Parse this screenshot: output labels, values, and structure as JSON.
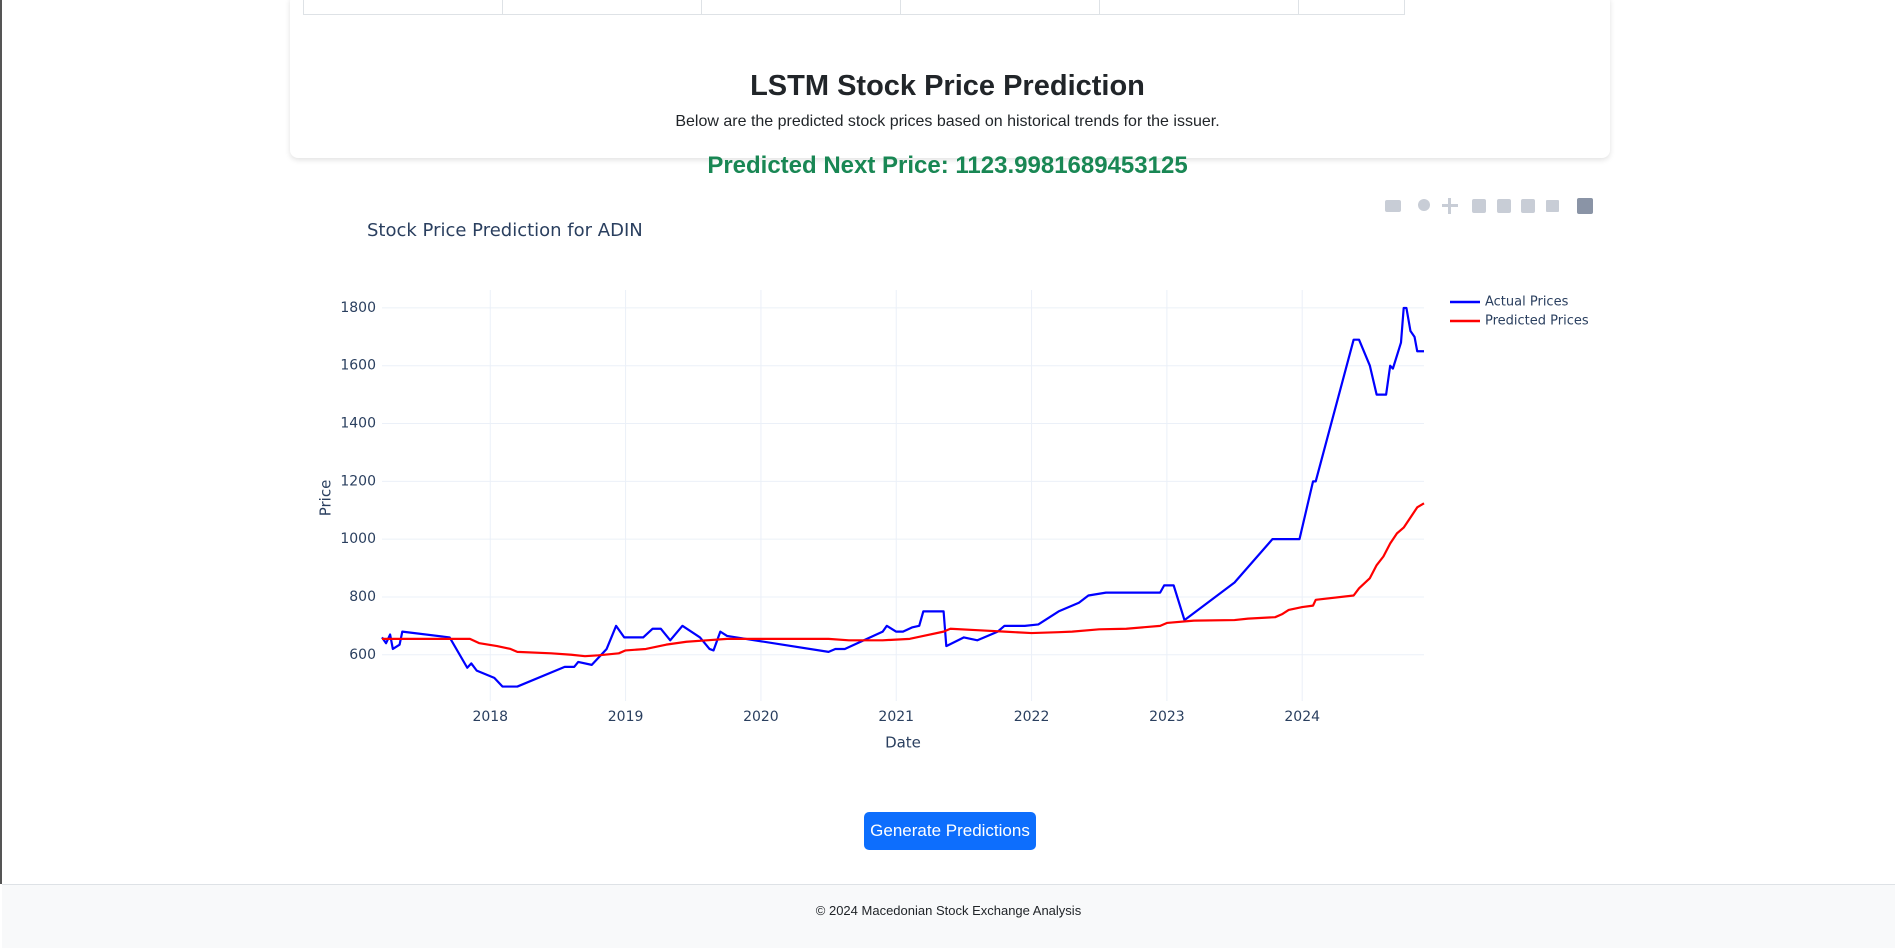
{
  "header": {
    "title": "LSTM Stock Price Prediction",
    "subtitle": "Below are the predicted stock prices based on historical trends for the issuer.",
    "predicted": "Predicted Next Price: 1123.9981689453125"
  },
  "chart_data": {
    "type": "line",
    "title": "Stock Price Prediction for ADIN",
    "x_label": "Date",
    "y_label": "Price",
    "xlim": [
      2017.2,
      2024.9
    ],
    "xticks": [
      2018,
      2019,
      2020,
      2021,
      2022,
      2023,
      2024
    ],
    "ylim": [
      440,
      1862
    ],
    "yticks": [
      600,
      800,
      1000,
      1200,
      1400,
      1600,
      1800
    ],
    "grid": true,
    "legend": "right",
    "series": [
      {
        "name": "Actual Prices",
        "color": "#0000ff",
        "x": [
          2017.2,
          2017.23,
          2017.26,
          2017.28,
          2017.33,
          2017.35,
          2017.7,
          2017.83,
          2017.86,
          2017.9,
          2018.03,
          2018.09,
          2018.2,
          2018.55,
          2018.62,
          2018.65,
          2018.75,
          2018.86,
          2018.93,
          2018.99,
          2019.13,
          2019.2,
          2019.26,
          2019.33,
          2019.42,
          2019.55,
          2019.62,
          2019.65,
          2019.7,
          2019.75,
          2020.5,
          2020.55,
          2020.62,
          2020.9,
          2020.93,
          2021.0,
          2021.05,
          2021.12,
          2021.17,
          2021.2,
          2021.35,
          2021.37,
          2021.5,
          2021.6,
          2021.75,
          2021.8,
          2021.95,
          2022.05,
          2022.2,
          2022.35,
          2022.42,
          2022.55,
          2022.95,
          2022.98,
          2023.05,
          2023.13,
          2023.5,
          2023.78,
          2023.98,
          2024.08,
          2024.1,
          2024.38,
          2024.42,
          2024.5,
          2024.55,
          2024.62,
          2024.65,
          2024.67,
          2024.73,
          2024.75,
          2024.77,
          2024.8,
          2024.83,
          2024.85,
          2024.9
        ],
        "values": [
          660,
          640,
          670,
          620,
          635,
          680,
          660,
          555,
          570,
          545,
          520,
          490,
          490,
          558,
          558,
          575,
          565,
          620,
          700,
          660,
          660,
          690,
          690,
          650,
          700,
          660,
          620,
          615,
          680,
          665,
          610,
          620,
          620,
          680,
          700,
          680,
          680,
          695,
          700,
          750,
          750,
          630,
          660,
          650,
          680,
          700,
          700,
          705,
          750,
          780,
          805,
          815,
          815,
          840,
          840,
          720,
          850,
          1000,
          1000,
          1200,
          1200,
          1690,
          1690,
          1600,
          1500,
          1500,
          1600,
          1590,
          1680,
          1800,
          1800,
          1720,
          1700,
          1650,
          1650
        ]
      },
      {
        "name": "Predicted Prices",
        "color": "#ff0000",
        "x": [
          2017.2,
          2017.35,
          2017.85,
          2017.92,
          2018.05,
          2018.15,
          2018.2,
          2018.45,
          2018.6,
          2018.7,
          2018.8,
          2018.95,
          2019.0,
          2019.15,
          2019.3,
          2019.45,
          2019.6,
          2019.75,
          2020.0,
          2020.5,
          2020.65,
          2020.9,
          2021.1,
          2021.2,
          2021.35,
          2021.4,
          2021.6,
          2021.8,
          2022.0,
          2022.2,
          2022.3,
          2022.5,
          2022.7,
          2022.95,
          2023.0,
          2023.2,
          2023.5,
          2023.6,
          2023.8,
          2023.85,
          2023.9,
          2024.0,
          2024.08,
          2024.1,
          2024.38,
          2024.42,
          2024.5,
          2024.55,
          2024.6,
          2024.65,
          2024.7,
          2024.75,
          2024.8,
          2024.85,
          2024.9
        ],
        "values": [
          655,
          655,
          655,
          640,
          630,
          620,
          610,
          605,
          600,
          595,
          598,
          605,
          615,
          620,
          635,
          645,
          650,
          655,
          655,
          655,
          650,
          650,
          655,
          665,
          680,
          690,
          685,
          680,
          675,
          678,
          680,
          688,
          690,
          700,
          710,
          718,
          720,
          725,
          730,
          740,
          755,
          765,
          770,
          790,
          805,
          830,
          865,
          910,
          940,
          985,
          1020,
          1040,
          1075,
          1110,
          1124
        ]
      }
    ]
  },
  "button": "Generate Predictions",
  "footer": "© 2024 Macedonian Stock Exchange Analysis"
}
